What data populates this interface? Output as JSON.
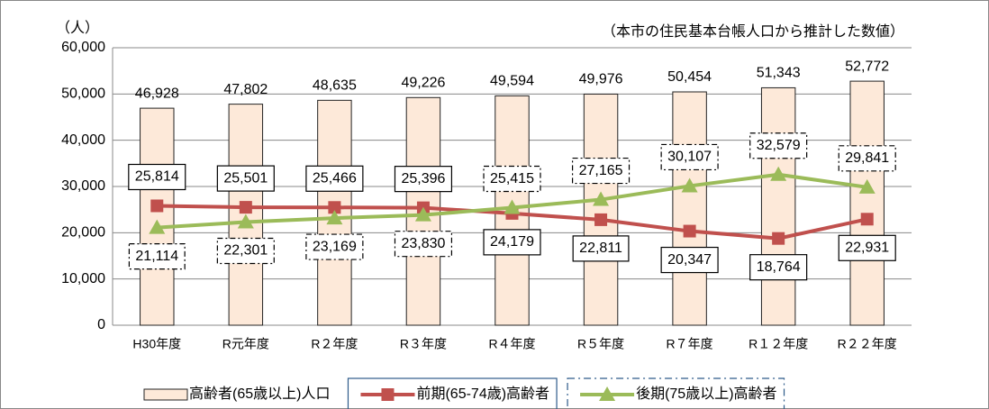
{
  "chart_data": {
    "type": "combo",
    "y_unit_label": "（人）",
    "note": "（本市の住民基本台帳人口から推計した数値）",
    "categories": [
      "H30年度",
      "R元年度",
      "R２年度",
      "R３年度",
      "R４年度",
      "R５年度",
      "R７年度",
      "R１２年度",
      "R２２年度"
    ],
    "series": [
      {
        "name": "高齢者(65歳以上)人口",
        "type": "bar",
        "color": "#fde9d9",
        "values": [
          46928,
          47802,
          48635,
          49226,
          49594,
          49976,
          50454,
          51343,
          52772
        ],
        "value_labels": [
          "46,928",
          "47,802",
          "48,635",
          "49,226",
          "49,594",
          "49,976",
          "50,454",
          "51,343",
          "52,772"
        ]
      },
      {
        "name": "前期(65-74歳)高齢者",
        "type": "line",
        "color": "#c0504d",
        "marker": "square",
        "values": [
          25814,
          25501,
          25466,
          25396,
          24179,
          22811,
          20347,
          18764,
          22931
        ],
        "value_labels": [
          "25,814",
          "25,501",
          "25,466",
          "25,396",
          "24,179",
          "22,811",
          "20,347",
          "18,764",
          "22,931"
        ]
      },
      {
        "name": "後期(75歳以上)高齢者",
        "type": "line",
        "color": "#9bbb59",
        "marker": "triangle",
        "values": [
          21114,
          22301,
          23169,
          23830,
          25415,
          27165,
          30107,
          32579,
          29841
        ],
        "value_labels": [
          "21,114",
          "22,301",
          "23,169",
          "23,830",
          "25,415",
          "27,165",
          "30,107",
          "32,579",
          "29,841"
        ]
      }
    ],
    "ylim": [
      0,
      60000
    ],
    "yticks": [
      0,
      {
        "value": 10000,
        "label": "10,000"
      },
      {
        "value": 20000,
        "label": "20,000"
      },
      {
        "value": 30000,
        "label": "30,000"
      },
      {
        "value": 40000,
        "label": "40,000"
      },
      {
        "value": 50000,
        "label": "50,000"
      },
      {
        "value": 60000,
        "label": "60,000"
      }
    ],
    "grid": true
  }
}
